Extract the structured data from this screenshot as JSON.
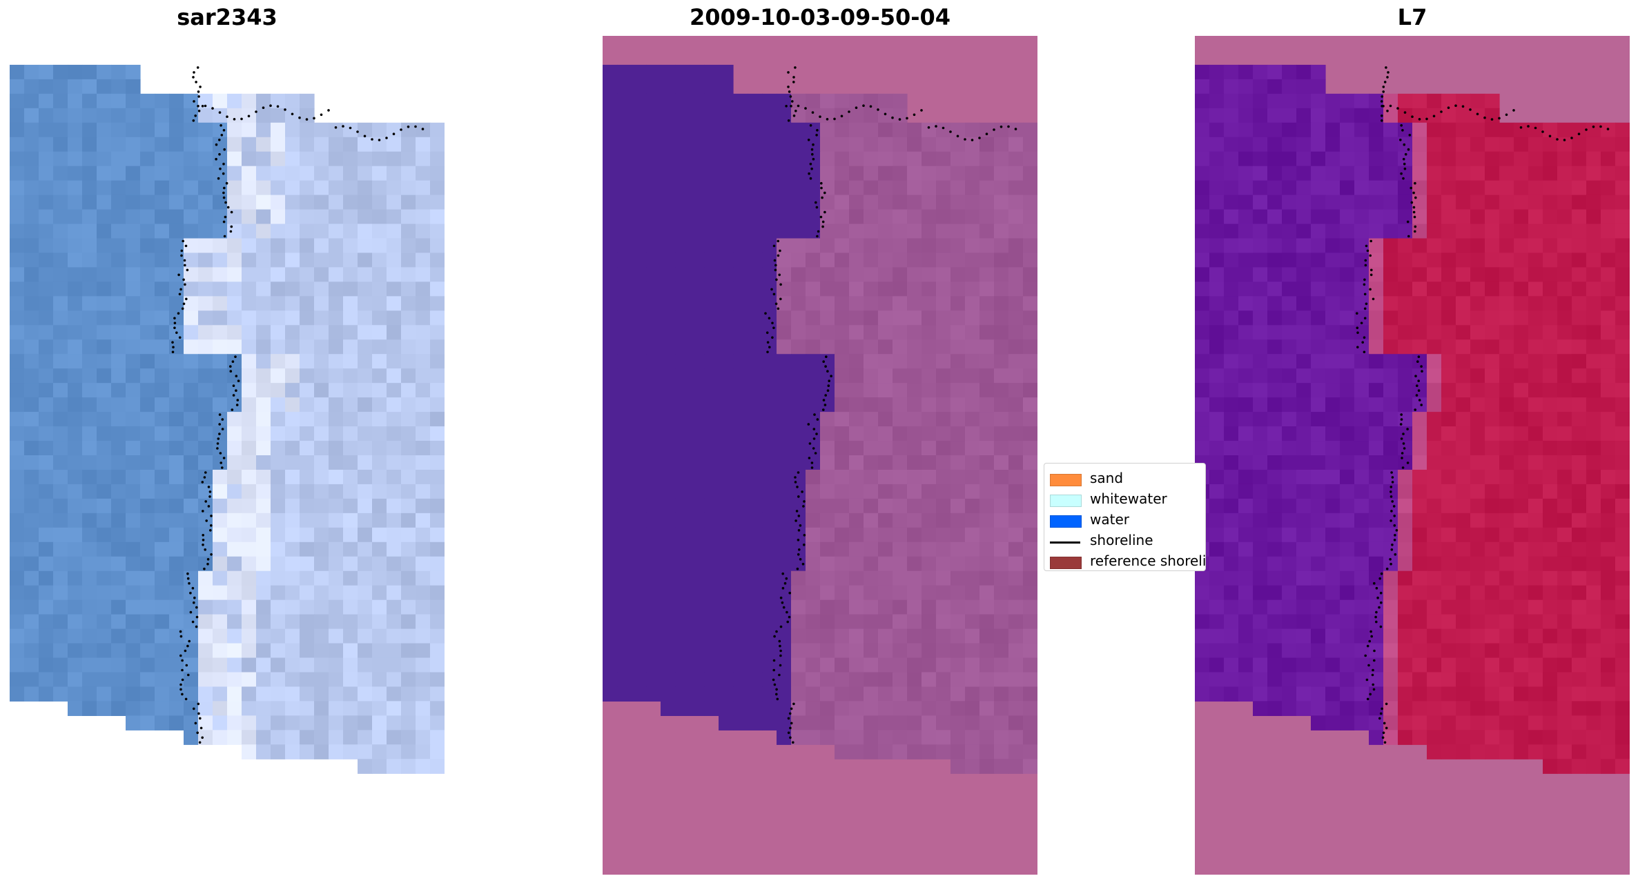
{
  "chart_data": [
    {
      "type": "heatmap",
      "title": "sar2343",
      "description": "RGB satellite tile (blue tones) with dotted shoreline overlay",
      "colors": {
        "water_base": "#5f90cc",
        "surf_base": "#b8c8ee",
        "shoreline": "#000000"
      }
    },
    {
      "type": "heatmap",
      "title": "2009-10-03-09-50-04",
      "description": "Classified image: water (purple) vs land (magenta), dotted shoreline",
      "colors": {
        "background": "#b96696",
        "water": "#502294",
        "land": "#9e5896",
        "shoreline": "#000000"
      }
    },
    {
      "type": "heatmap",
      "title": "L7",
      "description": "Index image: water (purple) vs land (crimson), dotted shoreline",
      "colors": {
        "background": "#b96696",
        "water": "#6a18a0",
        "land": "#c01a4e",
        "shoreline": "#000000"
      }
    }
  ],
  "legend": {
    "items": [
      {
        "label": "sand",
        "kind": "patch",
        "color": "#ff8c3c"
      },
      {
        "label": "whitewater",
        "kind": "patch",
        "color": "#c8ffff"
      },
      {
        "label": "water",
        "kind": "patch",
        "color": "#0064ff"
      },
      {
        "label": "shoreline",
        "kind": "line",
        "color": "#000000"
      },
      {
        "label": "reference shoreline",
        "kind": "patch",
        "color": "#9a3a3a"
      }
    ]
  }
}
